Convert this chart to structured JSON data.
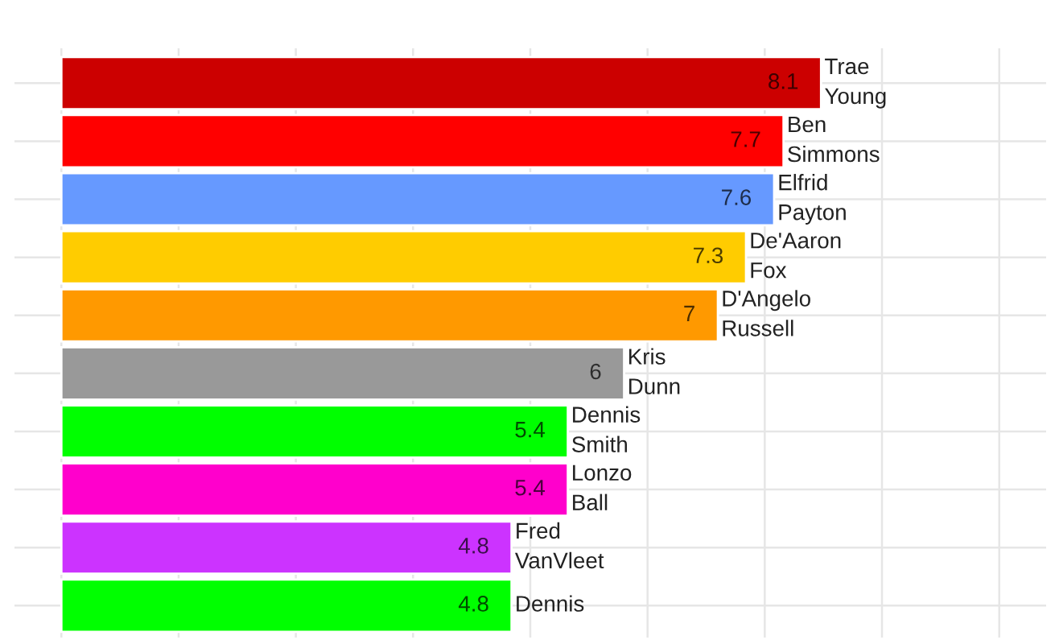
{
  "chart_data": {
    "type": "bar",
    "orientation": "horizontal",
    "categories": [
      "Trae\nYoung",
      "Ben\nSimmons",
      "Elfrid\nPayton",
      "De'Aaron\nFox",
      "D'Angelo\nRussell",
      "Kris\nDunn",
      "Dennis\nSmith",
      "Lonzo\nBall",
      "Fred\nVanVleet",
      "Dennis"
    ],
    "values": [
      8.1,
      7.7,
      7.6,
      7.3,
      7,
      6,
      5.4,
      5.4,
      4.8,
      4.8
    ],
    "colors": [
      "#cc0000",
      "#ff0000",
      "#6699ff",
      "#ffcc00",
      "#ff9900",
      "#999999",
      "#00ff00",
      "#ff00cc",
      "#cc33ff",
      "#00ff00"
    ],
    "xlim": [
      -0.5,
      10.5
    ],
    "xticks": [
      {
        "value": 0,
        "label": null
      },
      {
        "value": 1.25,
        "label": null
      },
      {
        "value": 2.5,
        "label": null
      },
      {
        "value": 3.75,
        "label": null
      },
      {
        "value": 5,
        "label": null
      },
      {
        "value": 6.25,
        "label": null
      },
      {
        "value": 7.5,
        "label": null
      },
      {
        "value": 8.75,
        "label": null
      },
      {
        "value": 10,
        "label": null
      }
    ],
    "grid": true,
    "data_labels": true,
    "tick_labels": false
  }
}
